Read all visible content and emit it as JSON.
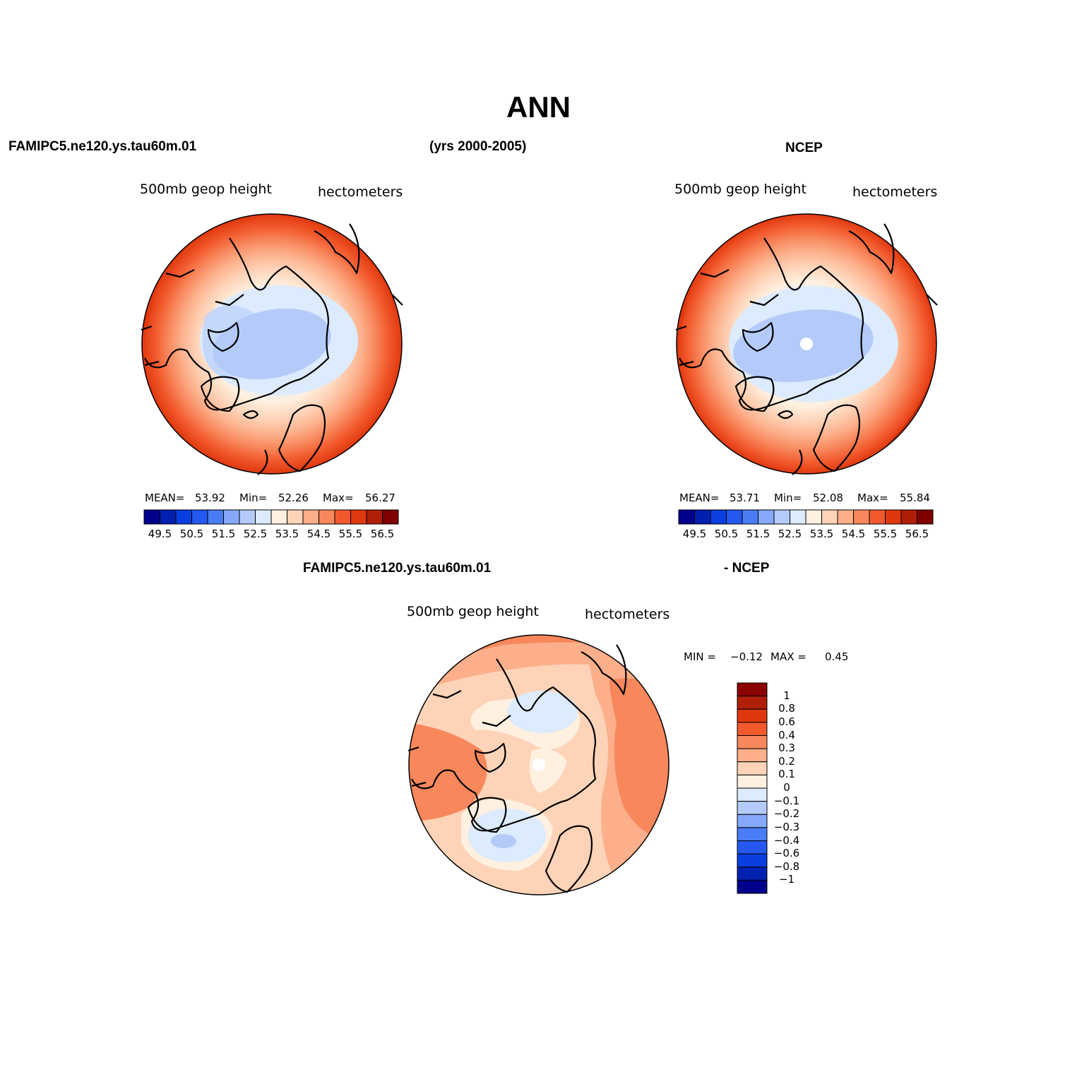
{
  "title": "ANN",
  "header": {
    "case_name": "FAMIPC5.ne120.ys.tau60m.01",
    "years": "(yrs 2000-2005)",
    "obs_name": "NCEP"
  },
  "panels": [
    {
      "variable": "500mb  geop  height",
      "units": "hectometers",
      "mean_label": "MEAN=",
      "mean": "53.92",
      "min_label": "Min=",
      "min": "52.26",
      "max_label": "Max=",
      "max": "56.27"
    },
    {
      "variable": "500mb  geop  height",
      "units": "hectometers",
      "mean_label": "MEAN=",
      "mean": "53.71",
      "min_label": "Min=",
      "min": "52.08",
      "max_label": "Max=",
      "max": "55.84"
    }
  ],
  "colorbar": {
    "colors": [
      "#00008c",
      "#0020b0",
      "#0a3ee0",
      "#2458f0",
      "#4a7cf5",
      "#85a8f8",
      "#b4cbfa",
      "#dcebfd",
      "#fff0e0",
      "#fed3b8",
      "#fcaf8a",
      "#f8875c",
      "#f25a2e",
      "#e0380e",
      "#b01e08",
      "#800000"
    ],
    "tick_labels": [
      "49.5",
      "50.5",
      "51.5",
      "52.5",
      "53.5",
      "54.5",
      "55.5",
      "56.5"
    ]
  },
  "diff": {
    "title_left": "FAMIPC5.ne120.ys.tau60m.01",
    "title_right": "- NCEP",
    "variable": "500mb  geop  height",
    "units": "hectometers",
    "min_label": "MIN =",
    "min": "−0.12",
    "max_label": "MAX =",
    "max": "0.45",
    "colors_top_to_bottom": [
      "#8c0000",
      "#b01e08",
      "#e0380e",
      "#f25a2e",
      "#f8875c",
      "#fcaf8a",
      "#fed3b8",
      "#fff0e0",
      "#dcebfd",
      "#b4cbfa",
      "#85a8f8",
      "#4a7cf5",
      "#2458f0",
      "#0a3ee0",
      "#0020b0",
      "#00008c"
    ],
    "tick_labels": [
      "1",
      "0.8",
      "0.6",
      "0.4",
      "0.3",
      "0.2",
      "0.1",
      "0",
      "−0.1",
      "−0.2",
      "−0.3",
      "−0.4",
      "−0.6",
      "−0.8",
      "−1"
    ]
  }
}
